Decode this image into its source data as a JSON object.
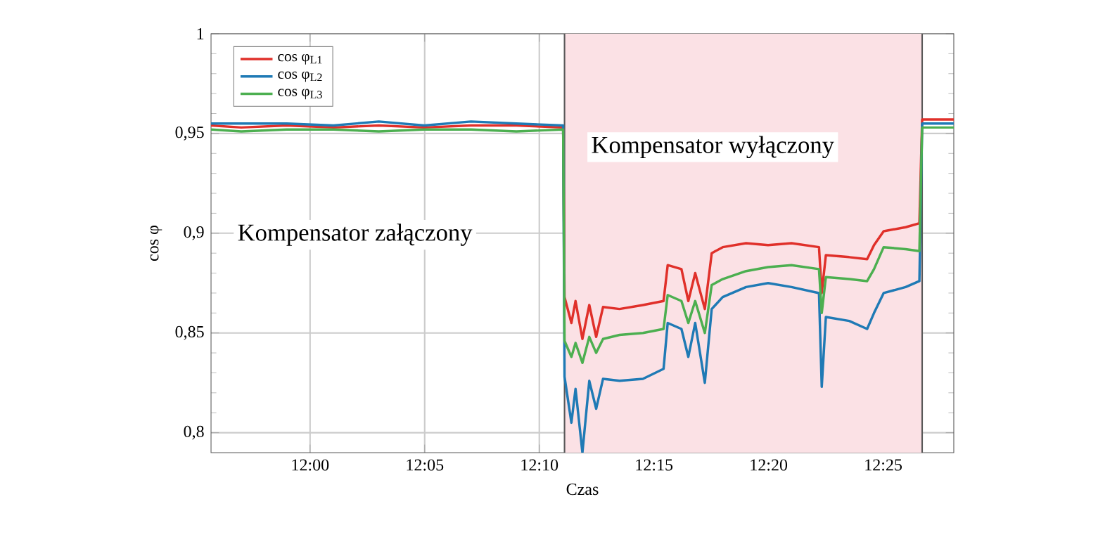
{
  "chart_data": {
    "type": "line",
    "xlabel": "Czas",
    "ylabel": "cos φ",
    "x": [
      11.928,
      11.95,
      11.983,
      12.017,
      12.05,
      12.083,
      12.117,
      12.15,
      12.184,
      12.185,
      12.19,
      12.193,
      12.198,
      12.203,
      12.208,
      12.213,
      12.225,
      12.242,
      12.257,
      12.26,
      12.27,
      12.275,
      12.28,
      12.287,
      12.292,
      12.3,
      12.317,
      12.333,
      12.35,
      12.37,
      12.372,
      12.375,
      12.392,
      12.405,
      12.41,
      12.417,
      12.433,
      12.443,
      12.445,
      12.468
    ],
    "series": [
      {
        "name": "cos φ$_{L1}$",
        "color": "#e0302a",
        "values": [
          0.954,
          0.953,
          0.954,
          0.953,
          0.954,
          0.953,
          0.954,
          0.954,
          0.953,
          0.868,
          0.855,
          0.866,
          0.847,
          0.864,
          0.848,
          0.863,
          0.862,
          0.864,
          0.866,
          0.884,
          0.882,
          0.866,
          0.88,
          0.862,
          0.89,
          0.893,
          0.895,
          0.894,
          0.895,
          0.893,
          0.87,
          0.889,
          0.888,
          0.887,
          0.894,
          0.901,
          0.903,
          0.905,
          0.957,
          0.957
        ]
      },
      {
        "name": "cos φ$_{L2}$",
        "color": "#1f7ab5",
        "values": [
          0.955,
          0.955,
          0.955,
          0.954,
          0.956,
          0.954,
          0.956,
          0.955,
          0.954,
          0.828,
          0.805,
          0.822,
          0.79,
          0.826,
          0.812,
          0.827,
          0.826,
          0.827,
          0.832,
          0.855,
          0.852,
          0.838,
          0.855,
          0.825,
          0.862,
          0.868,
          0.873,
          0.875,
          0.873,
          0.87,
          0.823,
          0.858,
          0.856,
          0.852,
          0.86,
          0.87,
          0.873,
          0.876,
          0.955,
          0.955
        ]
      },
      {
        "name": "cos φ$_{L3}$",
        "color": "#4caf50",
        "values": [
          0.952,
          0.951,
          0.952,
          0.952,
          0.951,
          0.952,
          0.952,
          0.951,
          0.952,
          0.846,
          0.838,
          0.845,
          0.835,
          0.848,
          0.84,
          0.847,
          0.849,
          0.85,
          0.852,
          0.869,
          0.866,
          0.855,
          0.866,
          0.85,
          0.874,
          0.877,
          0.881,
          0.883,
          0.884,
          0.882,
          0.86,
          0.878,
          0.877,
          0.876,
          0.882,
          0.893,
          0.892,
          0.891,
          0.953,
          0.953
        ]
      }
    ],
    "xlim": [
      11.928,
      12.468
    ],
    "xticks": [
      {
        "value": 12.0,
        "label": "12:00"
      },
      {
        "value": 12.083333,
        "label": "12:05"
      },
      {
        "value": 12.166667,
        "label": "12:10"
      },
      {
        "value": 12.25,
        "label": "12:15"
      },
      {
        "value": 12.333333,
        "label": "12:20"
      },
      {
        "value": 12.416667,
        "label": "12:25"
      }
    ],
    "ylim": [
      0.79,
      1.0
    ],
    "yticks": [
      {
        "value": 0.8,
        "label": "0,8"
      },
      {
        "value": 0.85,
        "label": "0,85"
      },
      {
        "value": 0.9,
        "label": "0,9"
      },
      {
        "value": 0.95,
        "label": "0,95"
      },
      {
        "value": 1,
        "label": "1"
      }
    ],
    "bands": [
      {
        "axis": "x",
        "from": 12.185,
        "to": 12.445,
        "label": "Kompensator wyłączony",
        "color": "#fbe1e5"
      }
    ],
    "ref_lines": [
      {
        "axis": "x",
        "value": 12.185,
        "color": "#595959"
      },
      {
        "axis": "x",
        "value": 12.445,
        "color": "#595959"
      }
    ],
    "annotations": [
      "Kompensator załączony"
    ],
    "grid": true,
    "legend": "top left",
    "line_style": "solid",
    "marker": "none"
  }
}
